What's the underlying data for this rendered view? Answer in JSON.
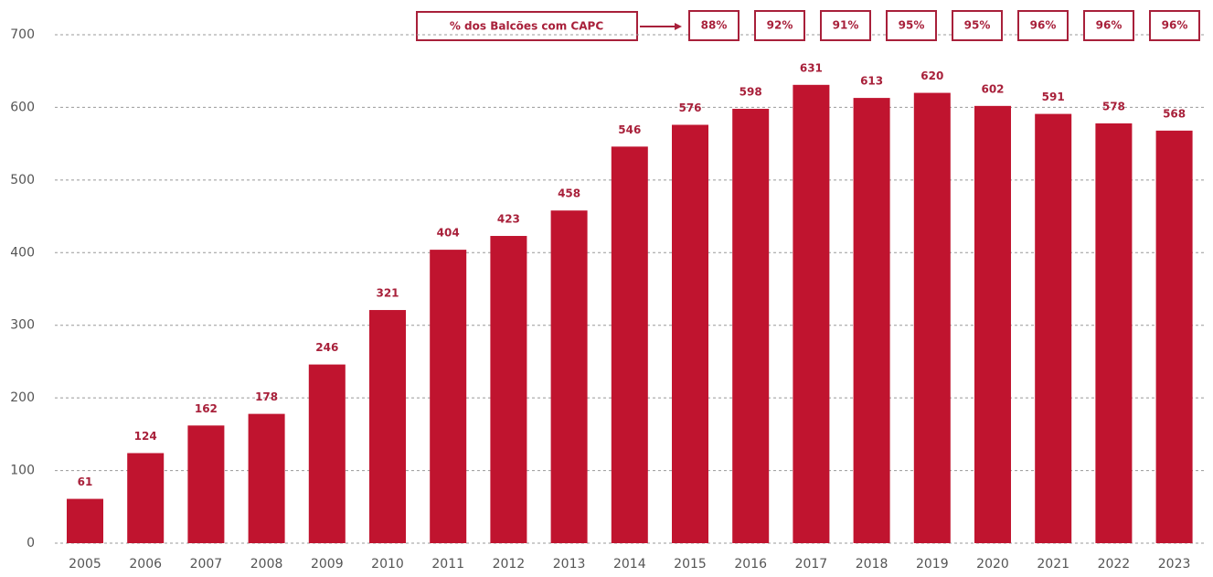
{
  "chart_data": {
    "type": "bar",
    "categories": [
      "2005",
      "2006",
      "2007",
      "2008",
      "2009",
      "2010",
      "2011",
      "2012",
      "2013",
      "2014",
      "2015",
      "2016",
      "2017",
      "2018",
      "2019",
      "2020",
      "2021",
      "2022",
      "2023"
    ],
    "values": [
      61,
      124,
      162,
      178,
      246,
      321,
      404,
      423,
      458,
      546,
      576,
      598,
      631,
      613,
      620,
      602,
      591,
      578,
      568
    ],
    "color": "#c0142f",
    "ylim": [
      0,
      700
    ],
    "yticks": [
      0,
      100,
      200,
      300,
      400,
      500,
      600,
      700
    ],
    "grid": true,
    "capc": {
      "label": "% dos Balcões com CAPC",
      "values": [
        88,
        92,
        91,
        95,
        95,
        96,
        96,
        96
      ],
      "value_labels": [
        "88%",
        "92%",
        "91%",
        "95%",
        "95%",
        "96%",
        "96%",
        "96%"
      ]
    }
  }
}
